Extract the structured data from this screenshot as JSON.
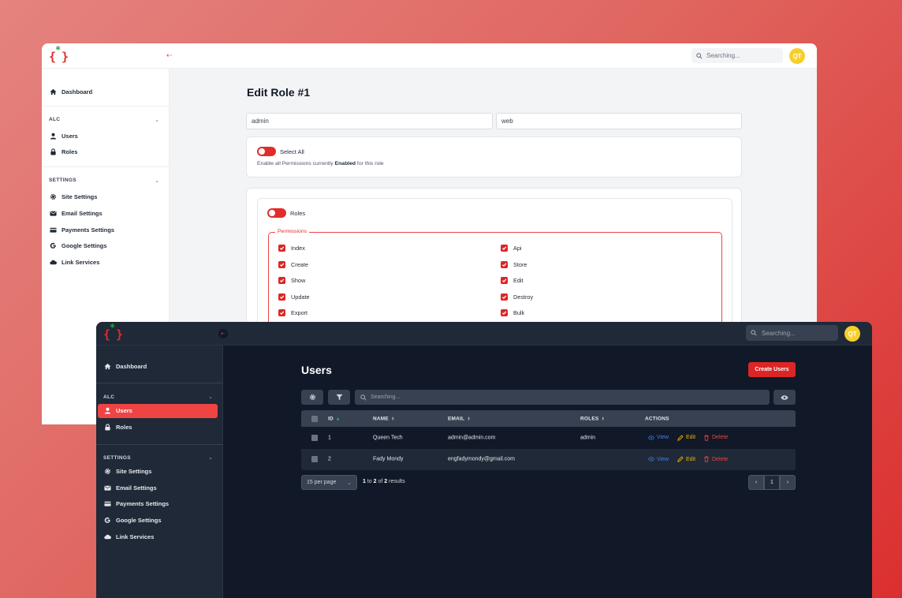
{
  "light_window": {
    "logo": {
      "brackets": "{ }",
      "star": "*"
    },
    "header": {
      "collapse_icon": "arrow-left-icon",
      "search_placeholder": "Searching...",
      "avatar_initials": "QT"
    },
    "sidebar": {
      "dashboard": "Dashboard",
      "sections": [
        {
          "label": "ALC",
          "items": [
            "Users",
            "Roles"
          ]
        },
        {
          "label": "SETTINGS",
          "items": [
            "Site Settings",
            "Email Settings",
            "Payments Settings",
            "Google Settings",
            "Link Services"
          ]
        }
      ]
    },
    "main": {
      "title": "Edit Role #1",
      "name_value": "admin",
      "guard_value": "web",
      "select_all": {
        "label": "Select All",
        "help_prefix": "Enable all Permissions currently ",
        "help_bold": "Enabled",
        "help_suffix": " for this role"
      },
      "roles_group": {
        "label": "Roles",
        "permissions_legend": "Permissions",
        "left": [
          "Index",
          "Create",
          "Show",
          "Update",
          "Export"
        ],
        "right": [
          "Api",
          "Store",
          "Edit",
          "Destroy",
          "Bulk"
        ]
      }
    }
  },
  "dark_window": {
    "logo": {
      "brackets": "{ }",
      "star": "*"
    },
    "header": {
      "search_placeholder": "Searching...",
      "avatar_initials": "QT"
    },
    "sidebar": {
      "dashboard": "Dashboard",
      "sections": [
        {
          "label": "ALC",
          "items": [
            "Users",
            "Roles"
          ]
        },
        {
          "label": "SETTINGS",
          "items": [
            "Site Settings",
            "Email Settings",
            "Payments Settings",
            "Google Settings",
            "Link Services"
          ]
        }
      ]
    },
    "main": {
      "title": "Users",
      "create_button": "Create Users",
      "table_search_placeholder": "Searching...",
      "columns": [
        "ID",
        "NAME",
        "EMAIL",
        "ROLES",
        "ACTIONS"
      ],
      "rows": [
        {
          "id": "1",
          "name": "Queen Tech",
          "email": "admin@admin.com",
          "role": "admin"
        },
        {
          "id": "2",
          "name": "Fady Mondy",
          "email": "engfadymondy@gmail.com",
          "role": ""
        }
      ],
      "actions": {
        "view": "View",
        "edit": "Edit",
        "delete": "Delete"
      },
      "per_page": "15 per page",
      "results": {
        "from": "1",
        "to_word": " to ",
        "to": "2",
        "of_word": " of ",
        "total": "2",
        "suffix": " results"
      },
      "pagination": {
        "prev": "‹",
        "current": "1",
        "next": "›"
      }
    }
  },
  "colors": {
    "accent": "#dc2626",
    "avatar": "#f8ce2a",
    "view_link": "#3b82f6",
    "edit_link": "#eab308",
    "delete_link": "#ef4444"
  }
}
